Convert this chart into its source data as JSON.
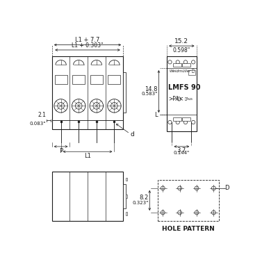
{
  "bg_color": "#ffffff",
  "line_color": "#1a1a1a",
  "front_view": {
    "bx": 0.055,
    "by": 0.52,
    "bw": 0.35,
    "bh": 0.36,
    "num_poles": 4,
    "dim_top1": "L1 + 7.7",
    "dim_top2": "L1 + 0.303\"",
    "dim_left1": "2.1",
    "dim_left2": "0.083\"",
    "dim_p": "P",
    "dim_l1": "L1",
    "dim_d": "d"
  },
  "side_view": {
    "sx": 0.62,
    "sy": 0.51,
    "sw": 0.145,
    "sh": 0.37,
    "dim_top1": "15.2",
    "dim_top2": "0.598\"",
    "dim_h1": "14.8",
    "dim_h2": "0.583\"",
    "dim_bot1": "3.7",
    "dim_bot2": "0.144\"",
    "dim_L": "L",
    "text_brand": "Weidmüller",
    "text_model": "LMFS 90",
    "text_mat": ">PA<"
  },
  "bottom_view": {
    "bvx": 0.055,
    "bvy": 0.07,
    "bvw": 0.35,
    "bvh": 0.24,
    "num_poles": 4
  },
  "hole_pattern": {
    "hx": 0.575,
    "hy": 0.07,
    "hw": 0.3,
    "hh": 0.2,
    "rows": 2,
    "cols": 4,
    "dim_v1": "8.2",
    "dim_v2": "0.323\"",
    "dim_D": "D",
    "label": "HOLE PATTERN"
  }
}
